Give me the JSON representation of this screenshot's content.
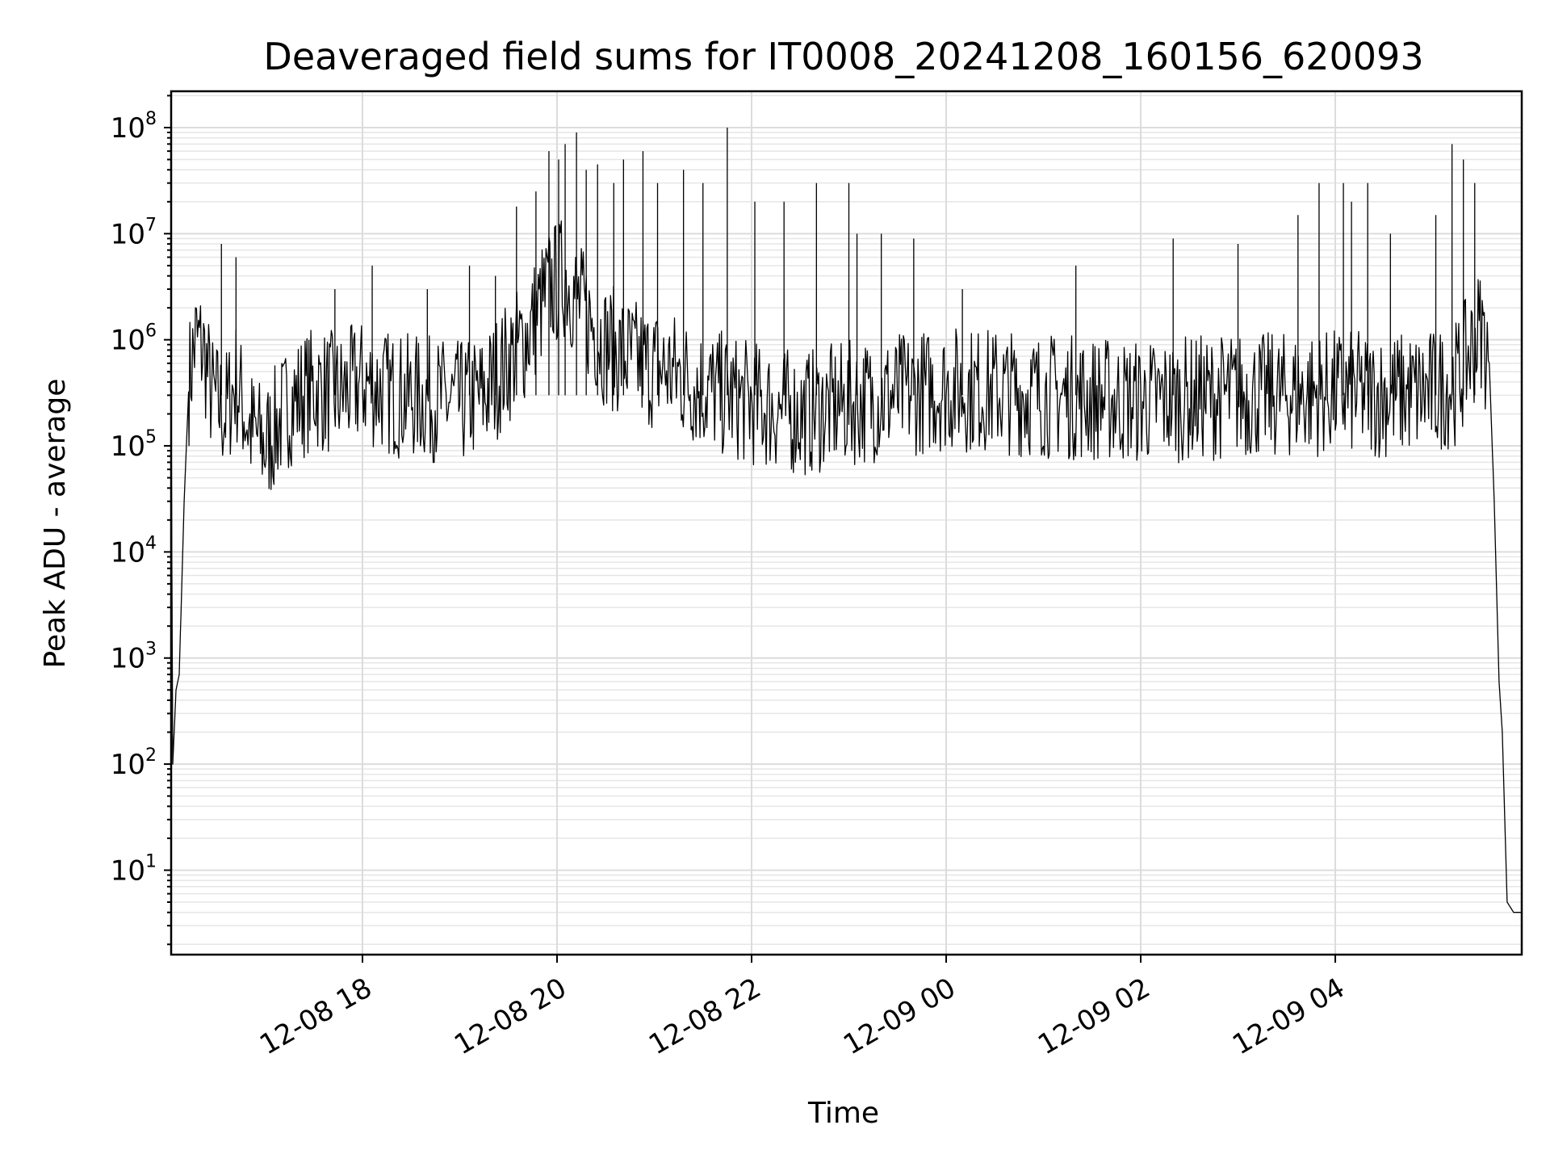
{
  "chart_data": {
    "type": "line",
    "title": "Deaveraged field sums for IT0008_20241208_160156_620093",
    "xlabel": "Time",
    "ylabel": "Peak ADU - average",
    "yscale": "log",
    "grid": true,
    "xlim": [
      "2024-12-08 16:02",
      "2024-12-09 05:55"
    ],
    "ylim": [
      1.6,
      220000000
    ],
    "x_ticks": [
      "12-08 18",
      "12-08 20",
      "12-08 22",
      "12-09 00",
      "12-09 02",
      "12-09 04"
    ],
    "x_tick_times": [
      "2024-12-08 18:00",
      "2024-12-08 20:00",
      "2024-12-08 22:00",
      "2024-12-09 00:00",
      "2024-12-09 02:00",
      "2024-12-09 04:00"
    ],
    "y_ticks": [
      {
        "base": "10",
        "exp": "1",
        "value": 10
      },
      {
        "base": "10",
        "exp": "2",
        "value": 100
      },
      {
        "base": "10",
        "exp": "3",
        "value": 1000
      },
      {
        "base": "10",
        "exp": "4",
        "value": 10000
      },
      {
        "base": "10",
        "exp": "5",
        "value": 100000
      },
      {
        "base": "10",
        "exp": "6",
        "value": 1000000
      },
      {
        "base": "10",
        "exp": "7",
        "value": 10000000
      },
      {
        "base": "10",
        "exp": "8",
        "value": 100000000
      }
    ],
    "series": [
      {
        "color": "#000000",
        "points": [
          [
            "2024-12-08 16:02",
            300000
          ],
          [
            "2024-12-08 16:03",
            100
          ],
          [
            "2024-12-08 16:05",
            500
          ],
          [
            "2024-12-08 16:07",
            700
          ],
          [
            "2024-12-08 16:10",
            30000
          ],
          [
            "2024-12-08 16:13",
            400000
          ],
          [
            "2024-12-08 16:17",
            1000000
          ],
          [
            "2024-12-08 16:22",
            800000
          ],
          [
            "2024-12-08 16:27",
            300000
          ],
          [
            "2024-12-08 16:35",
            200000
          ],
          [
            "2024-12-08 16:42",
            400000
          ],
          [
            "2024-12-08 16:50",
            150000
          ],
          [
            "2024-12-08 17:00",
            100000
          ],
          [
            "2024-12-08 17:15",
            250000
          ],
          [
            "2024-12-08 17:30",
            350000
          ],
          [
            "2024-12-08 17:45",
            300000
          ],
          [
            "2024-12-08 18:00",
            400000
          ],
          [
            "2024-12-08 18:20",
            300000
          ],
          [
            "2024-12-08 18:40",
            280000
          ],
          [
            "2024-12-08 19:00",
            250000
          ],
          [
            "2024-12-08 19:15",
            300000
          ],
          [
            "2024-12-08 19:25",
            500000
          ],
          [
            "2024-12-08 19:40",
            1000000
          ],
          [
            "2024-12-08 19:55",
            3000000
          ],
          [
            "2024-12-08 20:05",
            4000000
          ],
          [
            "2024-12-08 20:15",
            2000000
          ],
          [
            "2024-12-08 20:30",
            900000
          ],
          [
            "2024-12-08 20:50",
            600000
          ],
          [
            "2024-12-08 21:10",
            500000
          ],
          [
            "2024-12-08 21:30",
            350000
          ],
          [
            "2024-12-08 22:00",
            250000
          ],
          [
            "2024-12-08 22:30",
            200000
          ],
          [
            "2024-12-08 23:00",
            250000
          ],
          [
            "2024-12-08 23:30",
            300000
          ],
          [
            "2024-12-09 00:00",
            350000
          ],
          [
            "2024-12-09 00:30",
            330000
          ],
          [
            "2024-12-09 01:00",
            300000
          ],
          [
            "2024-12-09 01:30",
            280000
          ],
          [
            "2024-12-09 02:00",
            260000
          ],
          [
            "2024-12-09 02:30",
            280000
          ],
          [
            "2024-12-09 03:00",
            300000
          ],
          [
            "2024-12-09 03:30",
            300000
          ],
          [
            "2024-12-09 04:00",
            320000
          ],
          [
            "2024-12-09 04:30",
            300000
          ],
          [
            "2024-12-09 05:00",
            320000
          ],
          [
            "2024-12-09 05:15",
            400000
          ],
          [
            "2024-12-09 05:25",
            900000
          ],
          [
            "2024-12-09 05:30",
            1300000
          ],
          [
            "2024-12-09 05:35",
            600000
          ],
          [
            "2024-12-09 05:38",
            30000
          ],
          [
            "2024-12-09 05:41",
            600
          ],
          [
            "2024-12-09 05:43",
            200
          ],
          [
            "2024-12-09 05:46",
            5
          ],
          [
            "2024-12-09 05:50",
            4
          ],
          [
            "2024-12-09 05:55",
            4
          ]
        ],
        "spikes": [
          [
            "2024-12-08 16:33",
            8000000
          ],
          [
            "2024-12-08 16:42",
            6000000
          ],
          [
            "2024-12-08 17:43",
            3000000
          ],
          [
            "2024-12-08 18:06",
            5000000
          ],
          [
            "2024-12-08 18:40",
            3000000
          ],
          [
            "2024-12-08 19:06",
            5000000
          ],
          [
            "2024-12-08 19:22",
            4000000
          ],
          [
            "2024-12-08 19:35",
            18000000
          ],
          [
            "2024-12-08 19:47",
            25000000
          ],
          [
            "2024-12-08 19:55",
            60000000
          ],
          [
            "2024-12-08 20:01",
            50000000
          ],
          [
            "2024-12-08 20:05",
            70000000
          ],
          [
            "2024-12-08 20:12",
            90000000
          ],
          [
            "2024-12-08 20:18",
            40000000
          ],
          [
            "2024-12-08 20:25",
            45000000
          ],
          [
            "2024-12-08 20:35",
            30000000
          ],
          [
            "2024-12-08 20:41",
            50000000
          ],
          [
            "2024-12-08 20:53",
            60000000
          ],
          [
            "2024-12-08 21:02",
            30000000
          ],
          [
            "2024-12-08 21:18",
            40000000
          ],
          [
            "2024-12-08 21:30",
            30000000
          ],
          [
            "2024-12-08 21:45",
            100000000
          ],
          [
            "2024-12-08 22:02",
            20000000
          ],
          [
            "2024-12-08 22:20",
            20000000
          ],
          [
            "2024-12-08 22:40",
            30000000
          ],
          [
            "2024-12-08 23:00",
            30000000
          ],
          [
            "2024-12-08 23:05",
            10000000
          ],
          [
            "2024-12-08 23:20",
            10000000
          ],
          [
            "2024-12-08 23:40",
            9000000
          ],
          [
            "2024-12-09 00:10",
            3000000
          ],
          [
            "2024-12-09 01:20",
            5000000
          ],
          [
            "2024-12-09 02:20",
            9000000
          ],
          [
            "2024-12-09 03:00",
            8000000
          ],
          [
            "2024-12-09 03:37",
            15000000
          ],
          [
            "2024-12-09 03:50",
            30000000
          ],
          [
            "2024-12-09 04:05",
            30000000
          ],
          [
            "2024-12-09 04:10",
            20000000
          ],
          [
            "2024-12-09 04:20",
            30000000
          ],
          [
            "2024-12-09 04:34",
            10000000
          ],
          [
            "2024-12-09 05:02",
            15000000
          ],
          [
            "2024-12-09 05:12",
            70000000
          ],
          [
            "2024-12-09 05:19",
            50000000
          ],
          [
            "2024-12-09 05:26",
            30000000
          ]
        ]
      }
    ]
  }
}
